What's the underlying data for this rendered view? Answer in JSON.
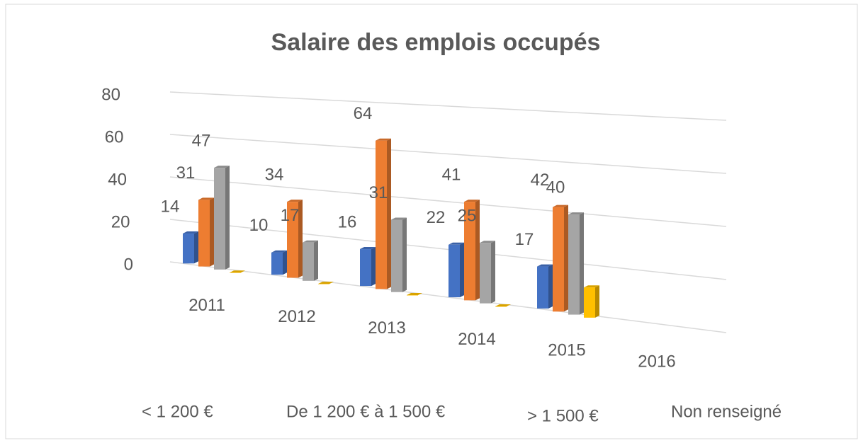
{
  "chart_data": {
    "type": "bar3d",
    "title": "Salaire des emplois occupés",
    "categories": [
      "2011",
      "2012",
      "2013",
      "2014",
      "2015",
      "2016"
    ],
    "series": [
      {
        "name": "< 1 200 €",
        "color": "#4472c4",
        "values": [
          14,
          10,
          16,
          22,
          17,
          null
        ],
        "data_labels": true
      },
      {
        "name": "De 1 200 € à 1 500 €",
        "color": "#ed7d31",
        "values": [
          31,
          34,
          64,
          41,
          42,
          null
        ],
        "data_labels": true
      },
      {
        "name": "> 1 500 €",
        "color": "#a5a5a5",
        "values": [
          47,
          17,
          31,
          25,
          40,
          null
        ],
        "data_labels": true
      },
      {
        "name": "Non renseigné",
        "color": "#ffc000",
        "values": [
          0,
          0,
          0,
          0,
          12,
          null
        ],
        "data_labels": false
      }
    ],
    "ylim": [
      0,
      80
    ],
    "yticks": [
      0,
      20,
      40,
      60,
      80
    ],
    "grid": true,
    "legend": "bottom"
  }
}
